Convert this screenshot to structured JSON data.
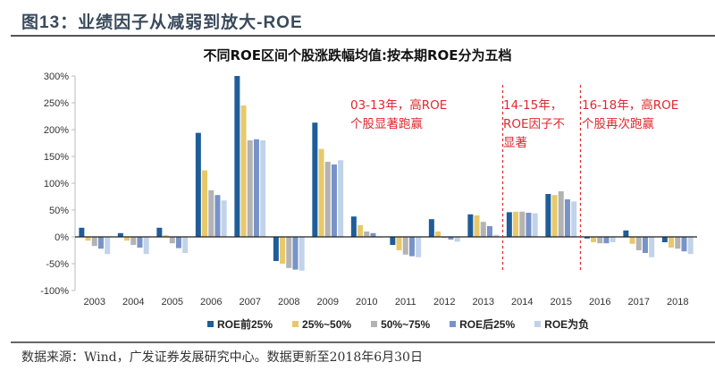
{
  "figure": {
    "title": "图13：业绩因子从减弱到放大-ROE",
    "source": "数据来源：Wind，广发证券发展研究中心。数据更新至2018年6月30日"
  },
  "annotations": [
    {
      "text_line1": "03-13年，高ROE",
      "text_line2": "个股显著跑赢",
      "text_line3": ""
    },
    {
      "text_line1": "14-15年，",
      "text_line2": "ROE因子不",
      "text_line3": "显著"
    },
    {
      "text_line1": "16-18年，高ROE",
      "text_line2": "个股再次跑赢",
      "text_line3": ""
    }
  ],
  "chart_data": {
    "type": "bar",
    "title": "不同ROE区间个股涨跌幅均值:按本期ROE分为五档",
    "xlabel": "",
    "ylabel": "",
    "ylim": [
      -100,
      300
    ],
    "yticks": [
      300,
      250,
      200,
      150,
      100,
      50,
      0,
      -50,
      -100
    ],
    "ytick_labels": [
      "300%",
      "250%",
      "200%",
      "150%",
      "100%",
      "50%",
      "0%",
      "-50%",
      "-100%"
    ],
    "grid": false,
    "legend_position": "bottom",
    "categories": [
      "2003",
      "2004",
      "2005",
      "2006",
      "2007",
      "2008",
      "2009",
      "2010",
      "2011",
      "2012",
      "2013",
      "2014",
      "2015",
      "2016",
      "2017",
      "2018"
    ],
    "dividers_after": [
      "2013",
      "2015"
    ],
    "series": [
      {
        "name": "ROE前25%",
        "color": "#1f5d99",
        "values": [
          17,
          7,
          17,
          194,
          300,
          -45,
          213,
          38,
          -15,
          33,
          42,
          46,
          80,
          -3,
          12,
          -10
        ]
      },
      {
        "name": "25%~50%",
        "color": "#e8c96a",
        "values": [
          -7,
          -7,
          3,
          124,
          245,
          -50,
          164,
          22,
          -25,
          10,
          40,
          47,
          78,
          -10,
          -13,
          -20
        ]
      },
      {
        "name": "50%~75%",
        "color": "#b3b3b3",
        "values": [
          -17,
          -15,
          -12,
          87,
          180,
          -58,
          140,
          10,
          -33,
          -2,
          28,
          47,
          85,
          -12,
          -25,
          -22
        ]
      },
      {
        "name": "ROE后25%",
        "color": "#7893c8",
        "values": [
          -22,
          -20,
          -21,
          78,
          182,
          -61,
          135,
          7,
          -36,
          -5,
          20,
          45,
          70,
          -12,
          -30,
          -27
        ]
      },
      {
        "name": "ROE为负",
        "color": "#c1d3ea",
        "values": [
          -32,
          -32,
          -30,
          68,
          180,
          -63,
          143,
          0,
          -38,
          -9,
          4,
          44,
          66,
          -10,
          -38,
          -32
        ]
      }
    ]
  }
}
